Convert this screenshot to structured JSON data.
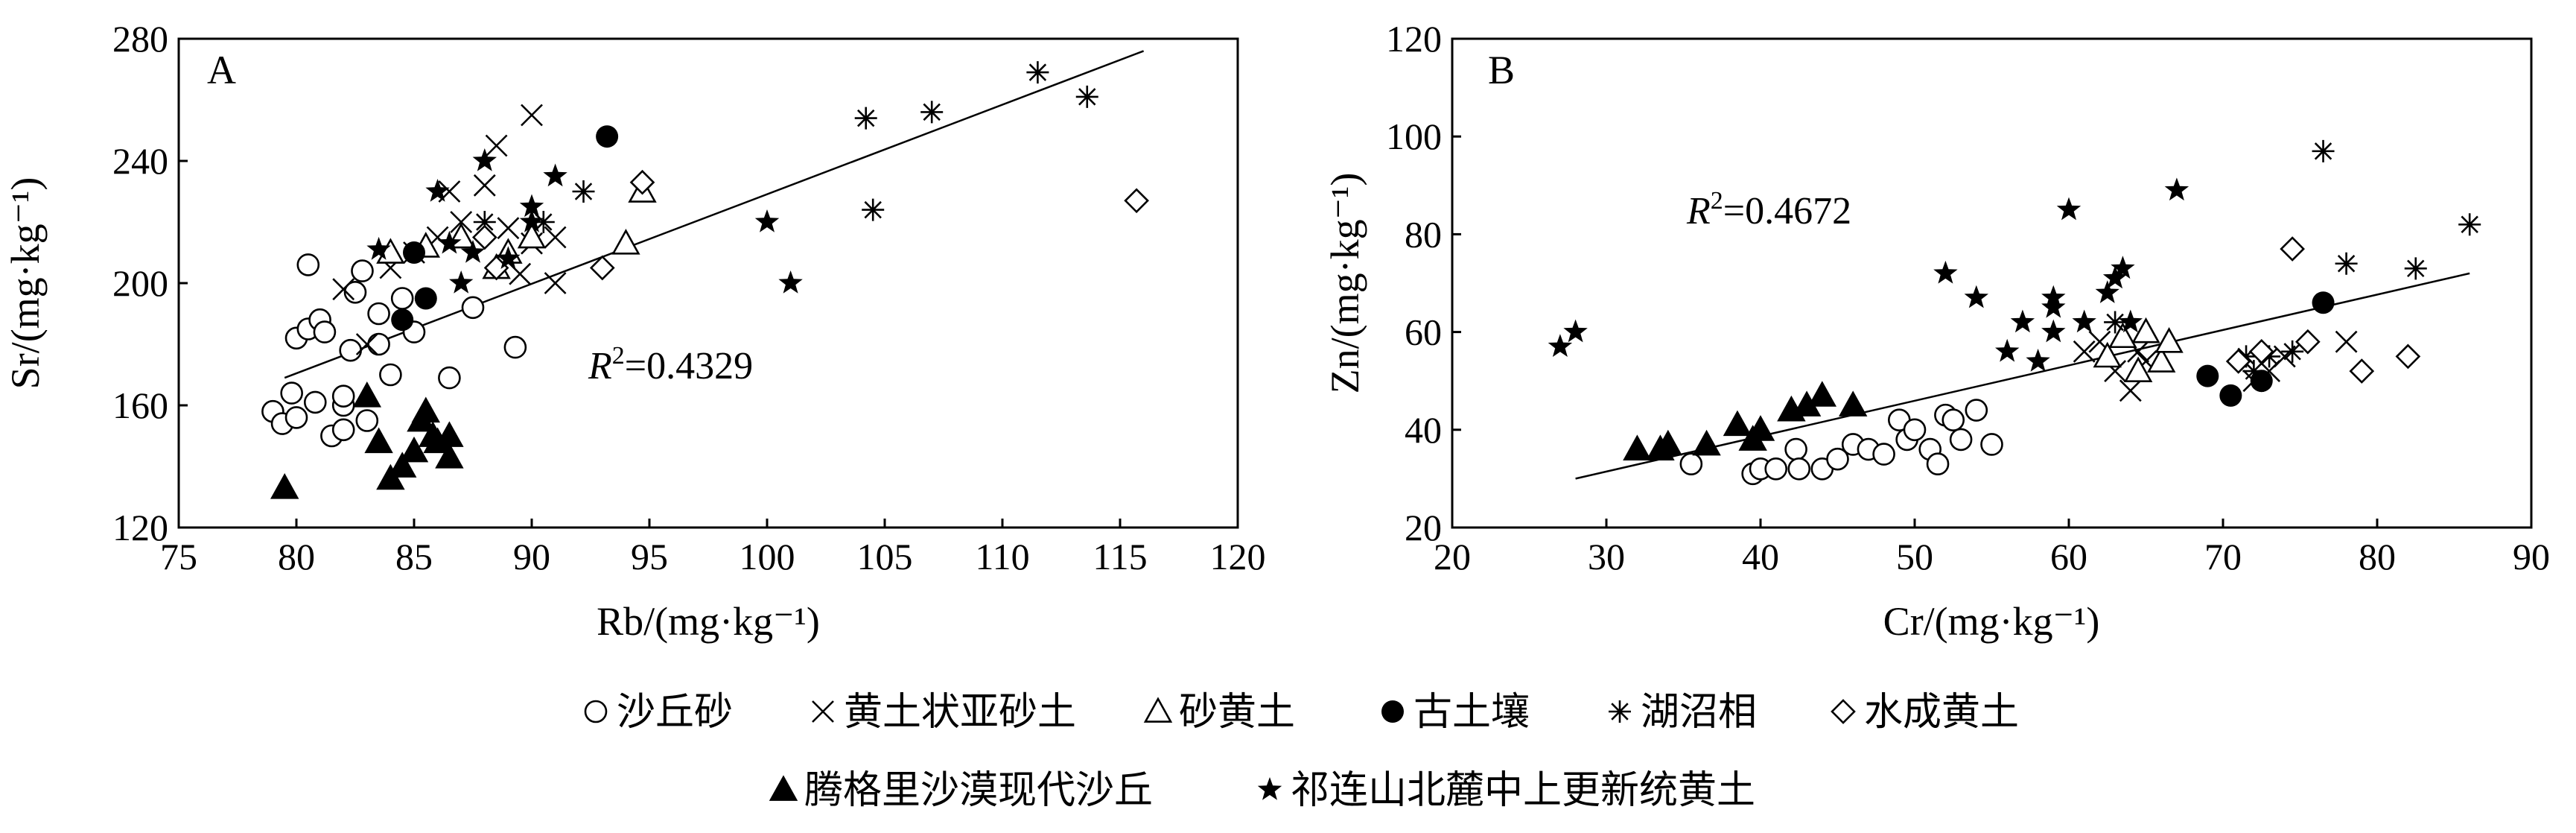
{
  "legend": [
    {
      "marker": "circle-open",
      "label": "沙丘砂"
    },
    {
      "marker": "cross",
      "label": "黄土状亚砂土"
    },
    {
      "marker": "triangle-open",
      "label": "砂黄土"
    },
    {
      "marker": "circle-filled",
      "label": "古土壤"
    },
    {
      "marker": "asterisk",
      "label": "湖沼相"
    },
    {
      "marker": "diamond-open",
      "label": "水成黄土"
    },
    {
      "marker": "triangle-filled",
      "label": "腾格里沙漠现代沙丘"
    },
    {
      "marker": "star-filled",
      "label": "祁连山北麓中上更新统黄土"
    }
  ],
  "chart_data": [
    {
      "type": "scatter",
      "panel_label": "A",
      "xlabel": "Rb/(mg·kg⁻¹)",
      "ylabel": "Sr/(mg·kg⁻¹)",
      "xlim": [
        75,
        120
      ],
      "ylim": [
        120,
        280
      ],
      "xticks": [
        75,
        80,
        85,
        90,
        95,
        100,
        105,
        110,
        115,
        120
      ],
      "yticks": [
        120,
        160,
        200,
        240,
        280
      ],
      "r2_prefix": "R",
      "r2_sup": "2",
      "r2_value": "=0.4329",
      "trendline": {
        "x1": 79.5,
        "y1": 169,
        "x2": 116,
        "y2": 276
      },
      "series": [
        {
          "name": "沙丘砂",
          "marker": "circle-open",
          "points": [
            [
              79,
              158
            ],
            [
              79.4,
              154
            ],
            [
              79.8,
              164
            ],
            [
              80,
              182
            ],
            [
              80.5,
              185
            ],
            [
              80.8,
              161
            ],
            [
              80.5,
              206
            ],
            [
              81,
              188
            ],
            [
              81.5,
              150
            ],
            [
              82,
              160
            ],
            [
              82,
              152
            ],
            [
              82.3,
              178
            ],
            [
              82.5,
              197
            ],
            [
              82.8,
              204
            ],
            [
              83,
              155
            ],
            [
              83.5,
              190
            ],
            [
              83.5,
              180
            ],
            [
              84,
              170
            ],
            [
              84.5,
              195
            ],
            [
              85,
              184
            ],
            [
              86.5,
              169
            ],
            [
              87.5,
              192
            ],
            [
              89.3,
              179
            ],
            [
              80,
              156
            ],
            [
              81.2,
              184
            ],
            [
              82,
              163
            ]
          ]
        },
        {
          "name": "黄土状亚砂土",
          "marker": "cross",
          "points": [
            [
              82,
              198
            ],
            [
              83,
              180
            ],
            [
              84,
              205
            ],
            [
              85,
              210
            ],
            [
              86,
              215
            ],
            [
              86.5,
              230
            ],
            [
              87,
              220
            ],
            [
              88,
              232
            ],
            [
              88.5,
              245
            ],
            [
              89,
              218
            ],
            [
              89.5,
              203
            ],
            [
              90,
              255
            ],
            [
              90,
              213
            ],
            [
              91,
              200
            ],
            [
              91,
              215
            ]
          ]
        },
        {
          "name": "砂黄土",
          "marker": "triangle-open",
          "points": [
            [
              84,
              210
            ],
            [
              85.5,
              212
            ],
            [
              87,
              215
            ],
            [
              88.5,
              205
            ],
            [
              89,
              210
            ],
            [
              90,
              215
            ],
            [
              94,
              213
            ],
            [
              94.7,
              230
            ]
          ]
        },
        {
          "name": "古土壤",
          "marker": "circle-filled",
          "points": [
            [
              84.5,
              188
            ],
            [
              85,
              210
            ],
            [
              85.5,
              195
            ],
            [
              93.2,
              248
            ]
          ]
        },
        {
          "name": "湖沼相",
          "marker": "asterisk",
          "points": [
            [
              88,
              220
            ],
            [
              90.5,
              220
            ],
            [
              92.2,
              230
            ],
            [
              104.2,
              254
            ],
            [
              104.5,
              224
            ],
            [
              107,
              256
            ],
            [
              111.5,
              269
            ],
            [
              113.6,
              261
            ]
          ]
        },
        {
          "name": "水成黄土",
          "marker": "diamond-open",
          "points": [
            [
              88,
              215
            ],
            [
              88.5,
              205
            ],
            [
              93,
              205
            ],
            [
              94.7,
              233
            ],
            [
              115.7,
              227
            ]
          ]
        },
        {
          "name": "腾格里沙漠现代沙丘",
          "marker": "triangle-filled",
          "points": [
            [
              79.5,
              133
            ],
            [
              83,
              163
            ],
            [
              83.5,
              148
            ],
            [
              84,
              136
            ],
            [
              84.5,
              140
            ],
            [
              85,
              145
            ],
            [
              85.3,
              155
            ],
            [
              85.5,
              158
            ],
            [
              85.8,
              150
            ],
            [
              86,
              148
            ],
            [
              86.5,
              143
            ],
            [
              86.5,
              150
            ]
          ]
        },
        {
          "name": "祁连山北麓中上更新统黄土",
          "marker": "star-filled",
          "points": [
            [
              83.5,
              211
            ],
            [
              86,
              230
            ],
            [
              86.5,
              213
            ],
            [
              87,
              200
            ],
            [
              87.5,
              210
            ],
            [
              88,
              240
            ],
            [
              89,
              208
            ],
            [
              90,
              225
            ],
            [
              90,
              220
            ],
            [
              91,
              235
            ],
            [
              100,
              220
            ],
            [
              101,
              200
            ]
          ]
        }
      ]
    },
    {
      "type": "scatter",
      "panel_label": "B",
      "xlabel": "Cr/(mg·kg⁻¹)",
      "ylabel": "Zn/(mg·kg⁻¹)",
      "xlim": [
        20,
        90
      ],
      "ylim": [
        20,
        120
      ],
      "xticks": [
        20,
        30,
        40,
        50,
        60,
        70,
        80,
        90
      ],
      "yticks": [
        20,
        40,
        60,
        80,
        100,
        120
      ],
      "r2_prefix": "R",
      "r2_sup": "2",
      "r2_value": "=0.4672",
      "trendline": {
        "x1": 28,
        "y1": 30,
        "x2": 86,
        "y2": 72
      },
      "series": [
        {
          "name": "沙丘砂",
          "marker": "circle-open",
          "points": [
            [
              35.5,
              33
            ],
            [
              39.5,
              31
            ],
            [
              40,
              32
            ],
            [
              41,
              32
            ],
            [
              42.3,
              36
            ],
            [
              42.5,
              32
            ],
            [
              44,
              32
            ],
            [
              45,
              34
            ],
            [
              46,
              37
            ],
            [
              47,
              36
            ],
            [
              48,
              35
            ],
            [
              49,
              42
            ],
            [
              49.5,
              38
            ],
            [
              50,
              40
            ],
            [
              51,
              36
            ],
            [
              51.5,
              33
            ],
            [
              52,
              43
            ],
            [
              52.5,
              42
            ],
            [
              53,
              38
            ],
            [
              54,
              44
            ],
            [
              55,
              37
            ]
          ]
        },
        {
          "name": "黄土状亚砂土",
          "marker": "cross",
          "points": [
            [
              61,
              56
            ],
            [
              62,
              58
            ],
            [
              63,
              52
            ],
            [
              64,
              48
            ],
            [
              64.5,
              56
            ],
            [
              65,
              54
            ],
            [
              72,
              50
            ],
            [
              73,
              52
            ],
            [
              74,
              55
            ],
            [
              78,
              58
            ]
          ]
        },
        {
          "name": "砂黄土",
          "marker": "triangle-open",
          "points": [
            [
              62.5,
              55
            ],
            [
              63.5,
              59
            ],
            [
              64.5,
              52
            ],
            [
              65,
              60
            ],
            [
              66,
              54
            ],
            [
              66.5,
              58
            ]
          ]
        },
        {
          "name": "古土壤",
          "marker": "circle-filled",
          "points": [
            [
              69,
              51
            ],
            [
              70.5,
              47
            ],
            [
              72.5,
              50
            ],
            [
              76.5,
              66
            ]
          ]
        },
        {
          "name": "湖沼相",
          "marker": "asterisk",
          "points": [
            [
              63,
              62
            ],
            [
              71.5,
              55
            ],
            [
              72,
              52
            ],
            [
              73,
              55
            ],
            [
              74.5,
              56
            ],
            [
              76.5,
              97
            ],
            [
              78,
              74
            ],
            [
              82.5,
              73
            ],
            [
              86,
              82
            ]
          ]
        },
        {
          "name": "水成黄土",
          "marker": "diamond-open",
          "points": [
            [
              71,
              54
            ],
            [
              72.5,
              56
            ],
            [
              74.5,
              77
            ],
            [
              75.5,
              58
            ],
            [
              79,
              52
            ],
            [
              82,
              55
            ]
          ]
        },
        {
          "name": "腾格里沙漠现代沙丘",
          "marker": "triangle-filled",
          "points": [
            [
              32,
              36
            ],
            [
              33.5,
              36
            ],
            [
              34,
              37
            ],
            [
              36.5,
              37
            ],
            [
              38.5,
              41
            ],
            [
              39.5,
              38
            ],
            [
              40,
              40
            ],
            [
              42,
              44
            ],
            [
              43,
              45
            ],
            [
              44,
              47
            ],
            [
              46,
              45
            ]
          ]
        },
        {
          "name": "祁连山北麓中上更新统黄土",
          "marker": "star-filled",
          "points": [
            [
              27,
              57
            ],
            [
              28,
              60
            ],
            [
              52,
              72
            ],
            [
              54,
              67
            ],
            [
              56,
              56
            ],
            [
              57,
              62
            ],
            [
              58,
              54
            ],
            [
              59,
              60
            ],
            [
              59,
              65
            ],
            [
              59,
              67
            ],
            [
              60,
              85
            ],
            [
              61,
              62
            ],
            [
              62.5,
              68
            ],
            [
              63,
              71
            ],
            [
              63.5,
              73
            ],
            [
              64,
              62
            ],
            [
              67,
              89
            ]
          ]
        }
      ]
    }
  ]
}
